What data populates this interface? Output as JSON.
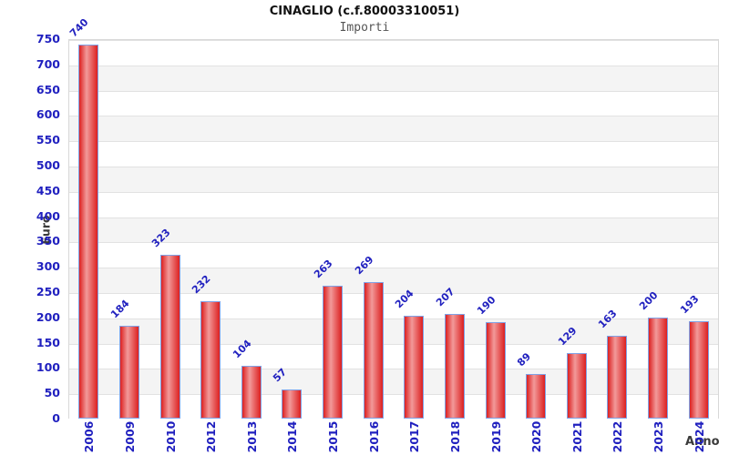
{
  "header": {
    "title": "CINAGLIO (c.f.80003310051)",
    "subtitle": "Importi"
  },
  "chart_data": {
    "type": "bar",
    "title": "CINAGLIO (c.f.80003310051)",
    "subtitle": "Importi",
    "categories": [
      "2006",
      "2009",
      "2010",
      "2012",
      "2013",
      "2014",
      "2015",
      "2016",
      "2017",
      "2018",
      "2019",
      "2020",
      "2021",
      "2022",
      "2023",
      "2024"
    ],
    "values": [
      740,
      184,
      323,
      232,
      104,
      57,
      263,
      269,
      204,
      207,
      190,
      89,
      129,
      163,
      200,
      193
    ],
    "xlabel": "Anno",
    "ylabel": "Euro",
    "ylim": [
      0,
      750
    ],
    "ytick_step": 50,
    "grid": true,
    "legend": false,
    "colors": {
      "bar_fill_edge": "#dc2020",
      "bar_fill_center": "#f29a9a",
      "bar_border": "#7fa2e6",
      "tick_text": "#2020bf",
      "axis_title_text": "#3a3a3a",
      "band_alt": "#f4f4f4",
      "gridline": "#e2e2e2"
    }
  }
}
